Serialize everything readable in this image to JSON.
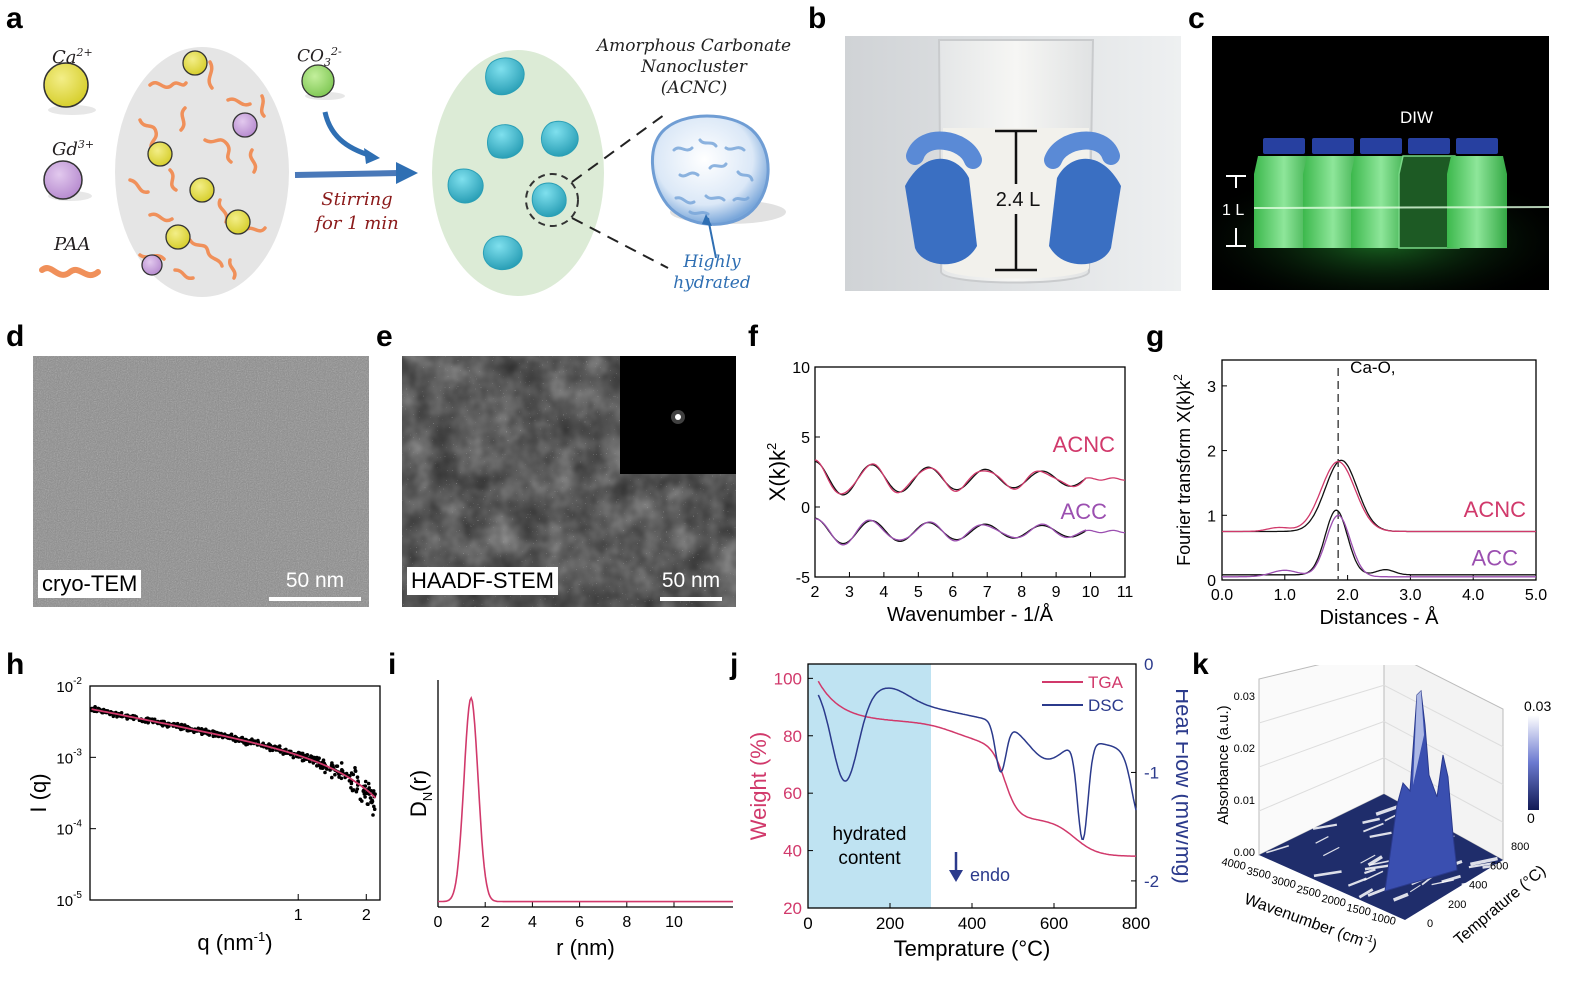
{
  "panels": {
    "a": "a",
    "b": "b",
    "c": "c",
    "d": "d",
    "e": "e",
    "f": "f",
    "g": "g",
    "h": "h",
    "i": "i",
    "j": "j",
    "k": "k"
  },
  "panel_a": {
    "legend_ca": "Ca",
    "legend_ca_sup": "2+",
    "legend_gd": "Gd",
    "legend_gd_sup": "3+",
    "legend_paa": "PAA",
    "co3": "CO",
    "co3_sub": "3",
    "co3_sup": "2-",
    "stirring_line1": "Stirring",
    "stirring_line2": "for 1 min",
    "acnc_line1": "Amorphous Carbonate",
    "acnc_line2": "Nanocluster",
    "acnc_line3": "(ACNC)",
    "hydrated_line1": "Highly",
    "hydrated_line2": "hydrated",
    "colors": {
      "ca": "#e8e25a",
      "gd": "#c9a6dd",
      "co3": "#9bd86c",
      "paa": "#f0905a",
      "cluster": "#3fb4c8",
      "arrow": "#2f6fb3"
    }
  },
  "panel_b": {
    "volume_label": "2.4 L"
  },
  "panel_c": {
    "diw_label": "DIW",
    "volume_label": "1 L"
  },
  "panel_d": {
    "tag": "cryo-TEM",
    "scale": "50 nm"
  },
  "panel_e": {
    "tag": "HAADF-STEM",
    "scale": "50 nm"
  },
  "chart_f": {
    "type": "line",
    "xlabel": "Wavenumber - 1/Å",
    "ylabel_main": "X(k)k",
    "ylabel_sup": "2",
    "xlim": [
      2,
      11
    ],
    "ylim": [
      -5,
      10
    ],
    "xticks": [
      "2",
      "3",
      "4",
      "5",
      "6",
      "7",
      "8",
      "9",
      "10",
      "11"
    ],
    "yticks": [
      "-5",
      "0",
      "5",
      "10"
    ],
    "series": [
      {
        "name": "ACNC",
        "color": "#d1396b"
      },
      {
        "name": "ACC",
        "color": "#9b4fb0"
      }
    ]
  },
  "chart_g": {
    "type": "line",
    "xlabel": "Distances - Å",
    "ylabel_main": "Fourier transform X(k)k",
    "ylabel_sup": "2",
    "xlim": [
      0,
      5
    ],
    "ylim": [
      0,
      3.4
    ],
    "xticks": [
      "0.0",
      "1.0",
      "2.0",
      "3.0",
      "4.0",
      "5.0"
    ],
    "yticks": [
      "0",
      "1",
      "2",
      "3"
    ],
    "marker_label": "Ca-O,",
    "marker_x": 1.85,
    "series": [
      {
        "name": "ACNC",
        "color": "#d1396b"
      },
      {
        "name": "ACC",
        "color": "#9b4fb0"
      }
    ]
  },
  "chart_h": {
    "type": "scatter",
    "xlabel": "q (nm",
    "xlabel_sup": "-1",
    "xlabel_end": ")",
    "ylabel": "I (q)",
    "xscale": "log",
    "yscale": "log",
    "xlim": [
      0.12,
      2.3
    ],
    "ylim": [
      1e-05,
      0.01
    ],
    "xticks": [
      "1",
      "2"
    ],
    "yticks": [
      {
        "base": "10",
        "exp": "-2"
      },
      {
        "base": "10",
        "exp": "-3"
      },
      {
        "base": "10",
        "exp": "-4"
      },
      {
        "base": "10",
        "exp": "-5"
      }
    ],
    "fit_color": "#d1396b"
  },
  "chart_i": {
    "type": "line",
    "xlabel": "r (nm)",
    "ylabel": "D",
    "ylabel_sub": "N",
    "ylabel_end": "(r)",
    "xlim": [
      0,
      12.5
    ],
    "xticks": [
      "0",
      "2",
      "4",
      "6",
      "8",
      "10"
    ],
    "peak_x": 1.4,
    "color": "#d1396b"
  },
  "chart_j": {
    "type": "line",
    "xlabel": "Temprature (°C)",
    "ylabel_left": "Weight (%)",
    "ylabel_right": "Heat Flow (mW/mg)",
    "xlim": [
      0,
      800
    ],
    "ylim_left": [
      20,
      105
    ],
    "ylim_right": [
      -2.25,
      0
    ],
    "xticks": [
      "0",
      "200",
      "400",
      "600",
      "800"
    ],
    "yticks_left": [
      "20",
      "40",
      "60",
      "80",
      "100"
    ],
    "yticks_right": [
      "0",
      "-1",
      "-2"
    ],
    "shade_label_line1": "hydrated",
    "shade_label_line2": "content",
    "shade_range": [
      0,
      300
    ],
    "endo_label": "endo",
    "series": [
      {
        "name": "TGA",
        "color": "#d1396b"
      },
      {
        "name": "DSC",
        "color": "#2b3a8c"
      }
    ]
  },
  "chart_k": {
    "type": "heatmap",
    "xlabel": "Wavenumber (cm",
    "xlabel_sup": "-1",
    "xlabel_end": ")",
    "ylabel": "Temprature (°C)",
    "zlabel": "Absorbance (a.u.)",
    "xticks": [
      "4000",
      "3500",
      "3000",
      "2500",
      "2000",
      "1500",
      "1000"
    ],
    "yticks": [
      "0",
      "200",
      "400",
      "600",
      "800"
    ],
    "zticks": [
      "0.00",
      "0.01",
      "0.02",
      "0.03"
    ],
    "colorbar_max": "0.03",
    "colorbar_min": "0",
    "color": "#2b3a8c"
  }
}
